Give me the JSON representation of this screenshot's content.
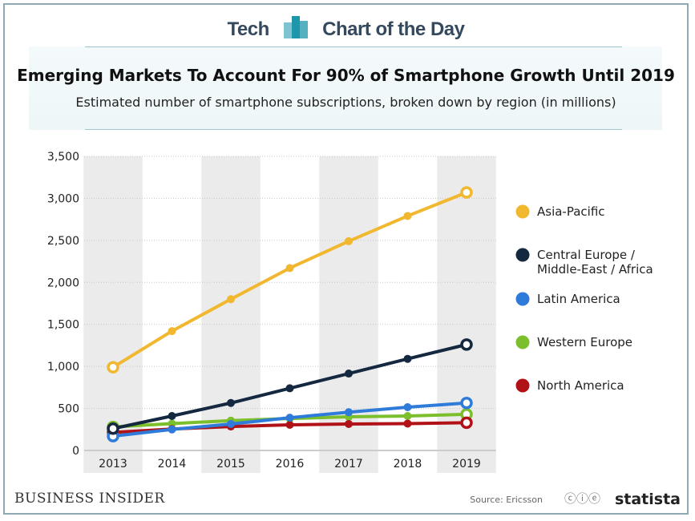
{
  "header": {
    "left": "Tech",
    "right": "Chart of the Day"
  },
  "footer": {
    "publisher": "BUSINESS INSIDER",
    "source": "Source: Ericsson",
    "license_icons": "cc-by-nd-icons",
    "brand": "statista"
  },
  "chart_data": {
    "type": "line",
    "title": "Emerging Markets To Account For 90% of Smartphone Growth Until 2019",
    "subtitle": "Estimated number of smartphone subscriptions, broken down by region (in millions)",
    "xlabel": "",
    "ylabel": "",
    "x": [
      "2013",
      "2014",
      "2015",
      "2016",
      "2017",
      "2018",
      "2019"
    ],
    "ylim": [
      0,
      3500
    ],
    "yticks": [
      "0",
      "500",
      "1,000",
      "1,500",
      "2,000",
      "2,500",
      "3,000",
      "3,500"
    ],
    "grid": true,
    "legend": "right",
    "series": [
      {
        "name": "Asia-Pacific",
        "color": "#f0b72f",
        "values": [
          990,
          1420,
          1800,
          2170,
          2490,
          2790,
          3070
        ]
      },
      {
        "name": "Central Europe / Middle-East / Africa",
        "color": "#14283f",
        "values": [
          260,
          410,
          565,
          740,
          915,
          1090,
          1260
        ]
      },
      {
        "name": "Latin America",
        "color": "#2f7bd9",
        "values": [
          170,
          250,
          315,
          390,
          455,
          515,
          565
        ]
      },
      {
        "name": "Western Europe",
        "color": "#7cbf2c",
        "values": [
          280,
          320,
          355,
          380,
          400,
          410,
          430
        ]
      },
      {
        "name": "North America",
        "color": "#b11217",
        "values": [
          215,
          255,
          285,
          305,
          315,
          320,
          330
        ]
      }
    ]
  }
}
